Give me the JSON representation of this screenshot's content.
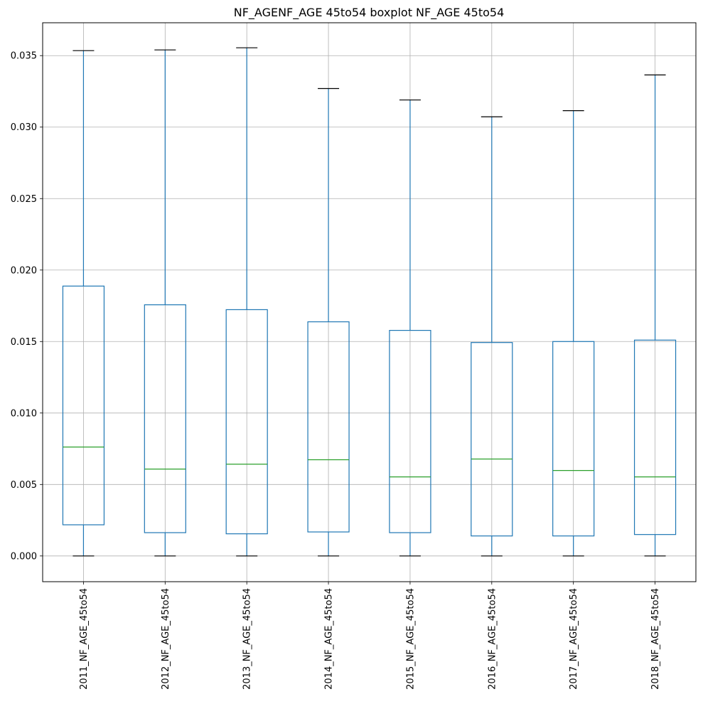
{
  "chart_data": {
    "type": "boxplot",
    "title": "NF_AGENF_AGE 45to54 boxplot NF_AGE 45to54",
    "xlabel": "",
    "ylabel": "",
    "ylim": [
      -0.0018,
      0.0373
    ],
    "yticks": [
      0.0,
      0.005,
      0.01,
      0.015,
      0.02,
      0.025,
      0.03,
      0.035
    ],
    "ytick_labels": [
      "0.000",
      "0.005",
      "0.010",
      "0.015",
      "0.020",
      "0.025",
      "0.030",
      "0.035"
    ],
    "grid": true,
    "categories": [
      "2011_NF_AGE_45to54",
      "2012_NF_AGE_45to54",
      "2013_NF_AGE_45to54",
      "2014_NF_AGE_45to54",
      "2015_NF_AGE_45to54",
      "2016_NF_AGE_45to54",
      "2017_NF_AGE_45to54",
      "2018_NF_AGE_45to54"
    ],
    "boxes": [
      {
        "whislo": 0.0,
        "q1": 0.00218,
        "med": 0.00762,
        "q3": 0.01888,
        "whishi": 0.03535
      },
      {
        "whislo": 0.0,
        "q1": 0.00163,
        "med": 0.00608,
        "q3": 0.01757,
        "whishi": 0.0354
      },
      {
        "whislo": 0.0,
        "q1": 0.00155,
        "med": 0.00642,
        "q3": 0.01723,
        "whishi": 0.03555
      },
      {
        "whislo": 0.0,
        "q1": 0.00168,
        "med": 0.00673,
        "q3": 0.01638,
        "whishi": 0.0327
      },
      {
        "whislo": 0.0,
        "q1": 0.00163,
        "med": 0.00553,
        "q3": 0.01578,
        "whishi": 0.0319
      },
      {
        "whislo": 0.0,
        "q1": 0.0014,
        "med": 0.00678,
        "q3": 0.01493,
        "whishi": 0.03072
      },
      {
        "whislo": 0.0,
        "q1": 0.0014,
        "med": 0.00598,
        "q3": 0.015,
        "whishi": 0.03115
      },
      {
        "whislo": 0.0,
        "q1": 0.0015,
        "med": 0.00553,
        "q3": 0.0151,
        "whishi": 0.03365
      }
    ],
    "colors": {
      "box": "#1f77b4",
      "median": "#2ca02c",
      "cap": "#000000",
      "grid": "#b0b0b0",
      "axes": "#000000"
    }
  }
}
